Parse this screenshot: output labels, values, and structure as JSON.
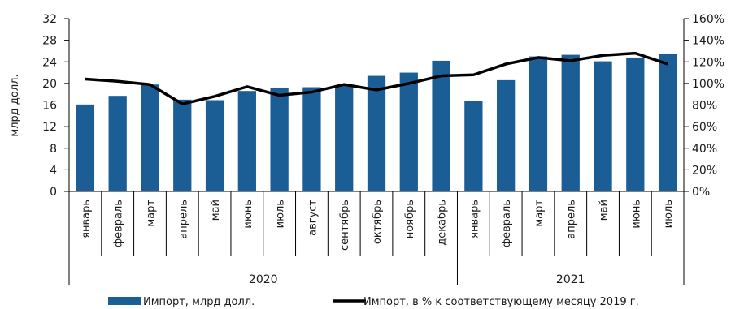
{
  "chart_data": {
    "type": "bar",
    "categories": [
      "январь",
      "февраль",
      "март",
      "апрель",
      "май",
      "июнь",
      "июль",
      "август",
      "сентябрь",
      "октябрь",
      "ноябрь",
      "декабрь",
      "январь",
      "февраль",
      "март",
      "апрель",
      "май",
      "июнь",
      "июль"
    ],
    "years": [
      {
        "label": "2020",
        "count": 12
      },
      {
        "label": "2021",
        "count": 7
      }
    ],
    "series": [
      {
        "name": "Импорт, млрд долл.",
        "type": "bar",
        "axis": "left",
        "color": "#1b5e96",
        "values": [
          16.1,
          17.7,
          19.8,
          17.0,
          16.9,
          18.6,
          19.1,
          19.3,
          19.7,
          21.4,
          22.0,
          24.2,
          16.8,
          20.6,
          25.0,
          25.3,
          24.1,
          24.8,
          25.4
        ]
      },
      {
        "name": "Импорт, в % к соответствующему месяцу 2019 г.",
        "type": "line",
        "axis": "right",
        "color": "#000000",
        "values": [
          104,
          102,
          99,
          81,
          88,
          97,
          89,
          92,
          99,
          94,
          100,
          107,
          108,
          118,
          124,
          121,
          126,
          128,
          118
        ]
      }
    ],
    "ylabel": "млрд долл.",
    "ylim": [
      0,
      32
    ],
    "yticks": [
      "0",
      "4",
      "8",
      "12",
      "16",
      "20",
      "24",
      "28",
      "32"
    ],
    "y2lim": [
      0,
      160
    ],
    "y2ticks": [
      "0%",
      "20%",
      "40%",
      "60%",
      "80%",
      "100%",
      "120%",
      "140%",
      "160%"
    ],
    "legend_position": "bottom"
  }
}
